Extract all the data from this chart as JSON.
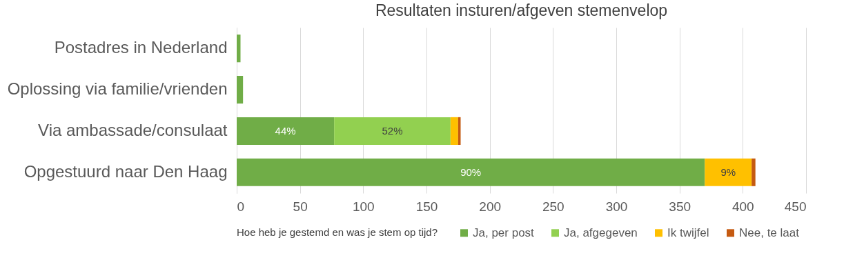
{
  "chart_data": {
    "type": "bar",
    "orientation": "horizontal",
    "stacked": true,
    "title": "Resultaten insturen/afgeven stemenvelop",
    "legend_title": "Hoe heb je gestemd en was je stem op tijd?",
    "categories": [
      "Postadres in Nederland",
      "Oplossing via familie/vrienden",
      "Via ambassade/consulaat",
      "Opgestuurd naar Den Haag"
    ],
    "series": [
      {
        "name": "Ja, per post",
        "color": "#70ad47",
        "values": [
          3,
          5,
          77,
          370
        ]
      },
      {
        "name": "Ja, afgegeven",
        "color": "#92d050",
        "values": [
          0,
          0,
          92,
          0
        ]
      },
      {
        "name": "Ik twijfel",
        "color": "#ffc000",
        "values": [
          0,
          0,
          6,
          37
        ]
      },
      {
        "name": "Nee, te laat",
        "color": "#c55a11",
        "values": [
          0,
          0,
          2,
          3
        ]
      }
    ],
    "annotations": [
      {
        "text": "44%",
        "x": 38.5,
        "y": "Via ambassade/consulaat"
      },
      {
        "text": "52%",
        "x": 123,
        "y": "Via ambassade/consulaat"
      },
      {
        "text": "90%",
        "x": 185,
        "y": "Opgestuurd naar Den Haag"
      },
      {
        "text": "9%",
        "x": 388.5,
        "y": "Opgestuurd naar Den Haag"
      }
    ],
    "xlim": [
      0,
      450
    ],
    "xticks": [
      0,
      50,
      100,
      150,
      200,
      250,
      300,
      350,
      400,
      450
    ],
    "grid": "x",
    "legend": "bottom"
  }
}
